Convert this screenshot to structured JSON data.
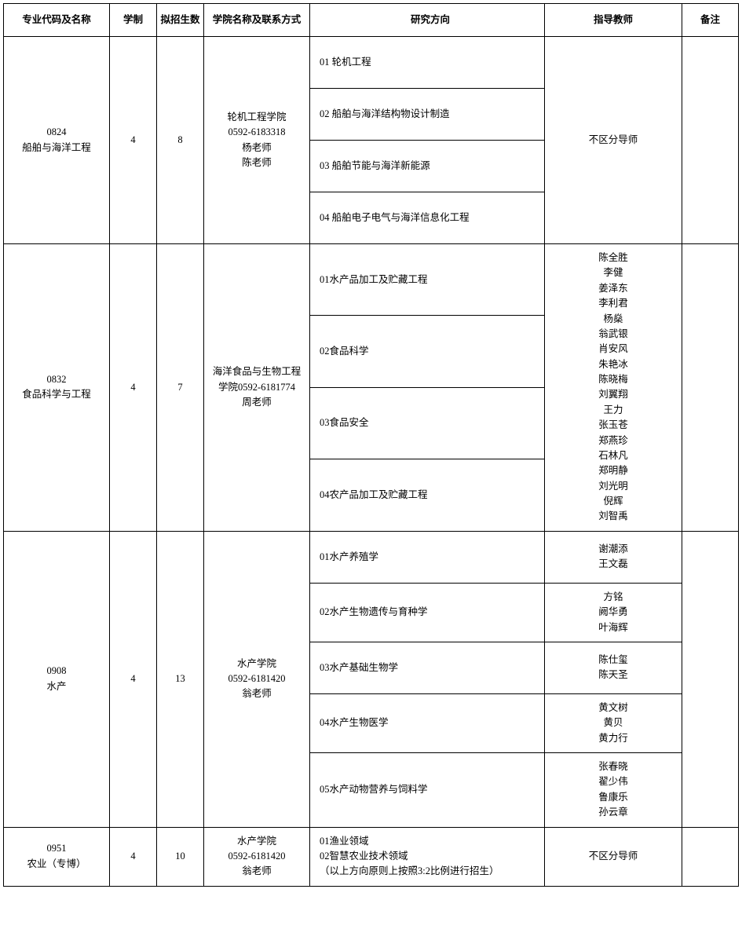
{
  "headers": {
    "code": "专业代码及名称",
    "system": "学制",
    "quota": "拟招生数",
    "college": "学院名称及联系方式",
    "direction": "研究方向",
    "advisor": "指导教师",
    "remark": "备注"
  },
  "majors": [
    {
      "code": "0824\n船舶与海洋工程",
      "system": "4",
      "quota": "8",
      "college": "轮机工程学院\n0592-6183318\n杨老师\n陈老师",
      "directions": [
        {
          "text": "01 轮机工程",
          "advisor": null
        },
        {
          "text": "02 船舶与海洋结构物设计制造",
          "advisor": null
        },
        {
          "text": "03 船舶节能与海洋新能源",
          "advisor": null
        },
        {
          "text": "04 船舶电子电气与海洋信息化工程",
          "advisor": null
        }
      ],
      "advisor_merged": "不区分导师",
      "remark": ""
    },
    {
      "code": "0832\n食品科学与工程",
      "system": "4",
      "quota": "7",
      "college": "海洋食品与生物工程\n学院0592-6181774\n周老师",
      "directions": [
        {
          "text": "01水产品加工及贮藏工程",
          "advisor": null
        },
        {
          "text": "02食品科学",
          "advisor": null
        },
        {
          "text": "03食品安全",
          "advisor": null
        },
        {
          "text": "04农产品加工及贮藏工程",
          "advisor": null
        }
      ],
      "advisor_merged": "陈全胜\n李健\n姜泽东\n李利君\n杨燊\n翁武银\n肖安风\n朱艳冰\n陈晓梅\n刘翼翔\n王力\n张玉苍\n郑燕珍\n石林凡\n郑明静\n刘光明\n倪辉\n刘智禹",
      "remark": ""
    },
    {
      "code": "0908\n水产",
      "system": "4",
      "quota": "13",
      "college": "水产学院\n0592-6181420\n翁老师",
      "directions": [
        {
          "text": "01水产养殖学",
          "advisor": "谢潮添\n王文磊"
        },
        {
          "text": "02水产生物遗传与育种学",
          "advisor": "方铭\n阙华勇\n叶海辉"
        },
        {
          "text": "03水产基础生物学",
          "advisor": "陈仕玺\n陈天圣"
        },
        {
          "text": "04水产生物医学",
          "advisor": "黄文树\n黄贝\n黄力行"
        },
        {
          "text": "05水产动物营养与饲料学",
          "advisor": "张春晓\n翟少伟\n鲁康乐\n孙云章"
        }
      ],
      "advisor_merged": null,
      "remark": ""
    },
    {
      "code": "0951\n农业（专博）",
      "system": "4",
      "quota": "10",
      "college": "水产学院\n0592-6181420\n翁老师",
      "directions": [
        {
          "text": "01渔业领域\n02智慧农业技术领域\n（以上方向原则上按照3:2比例进行招生）",
          "advisor": null
        }
      ],
      "advisor_merged": "不区分导师",
      "remark": ""
    }
  ]
}
